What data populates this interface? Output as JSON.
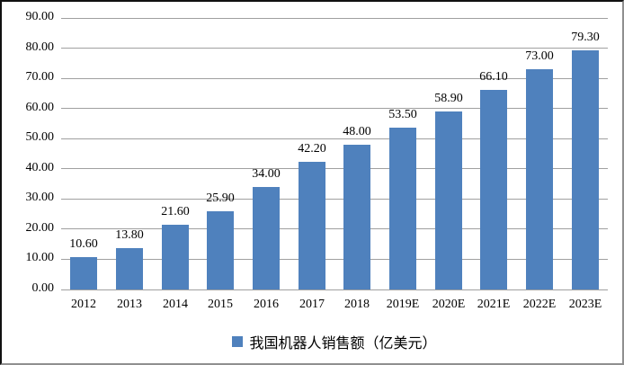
{
  "chart_data": {
    "type": "bar",
    "title": "",
    "xlabel": "",
    "ylabel": "",
    "categories": [
      "2012",
      "2013",
      "2014",
      "2015",
      "2016",
      "2017",
      "2018",
      "2019E",
      "2020E",
      "2021E",
      "2022E",
      "2023E"
    ],
    "values": [
      10.6,
      13.8,
      21.6,
      25.9,
      34.0,
      42.2,
      48.0,
      53.5,
      58.9,
      66.1,
      73.0,
      79.3
    ],
    "value_labels": [
      "10.60",
      "13.80",
      "21.60",
      "25.90",
      "34.00",
      "42.20",
      "48.00",
      "53.50",
      "58.90",
      "66.10",
      "73.00",
      "79.30"
    ],
    "ylim": [
      0,
      90
    ],
    "ytick_step": 10,
    "ytick_decimals": 2,
    "grid": true,
    "legend_label": "我国机器人销售额（亿美元）",
    "legend_position": "bottom-center",
    "bar_color": "#4F81BD",
    "gridline_color": "#A0A0A0",
    "text_color": "#000000",
    "background_color": "#FFFFFF"
  }
}
